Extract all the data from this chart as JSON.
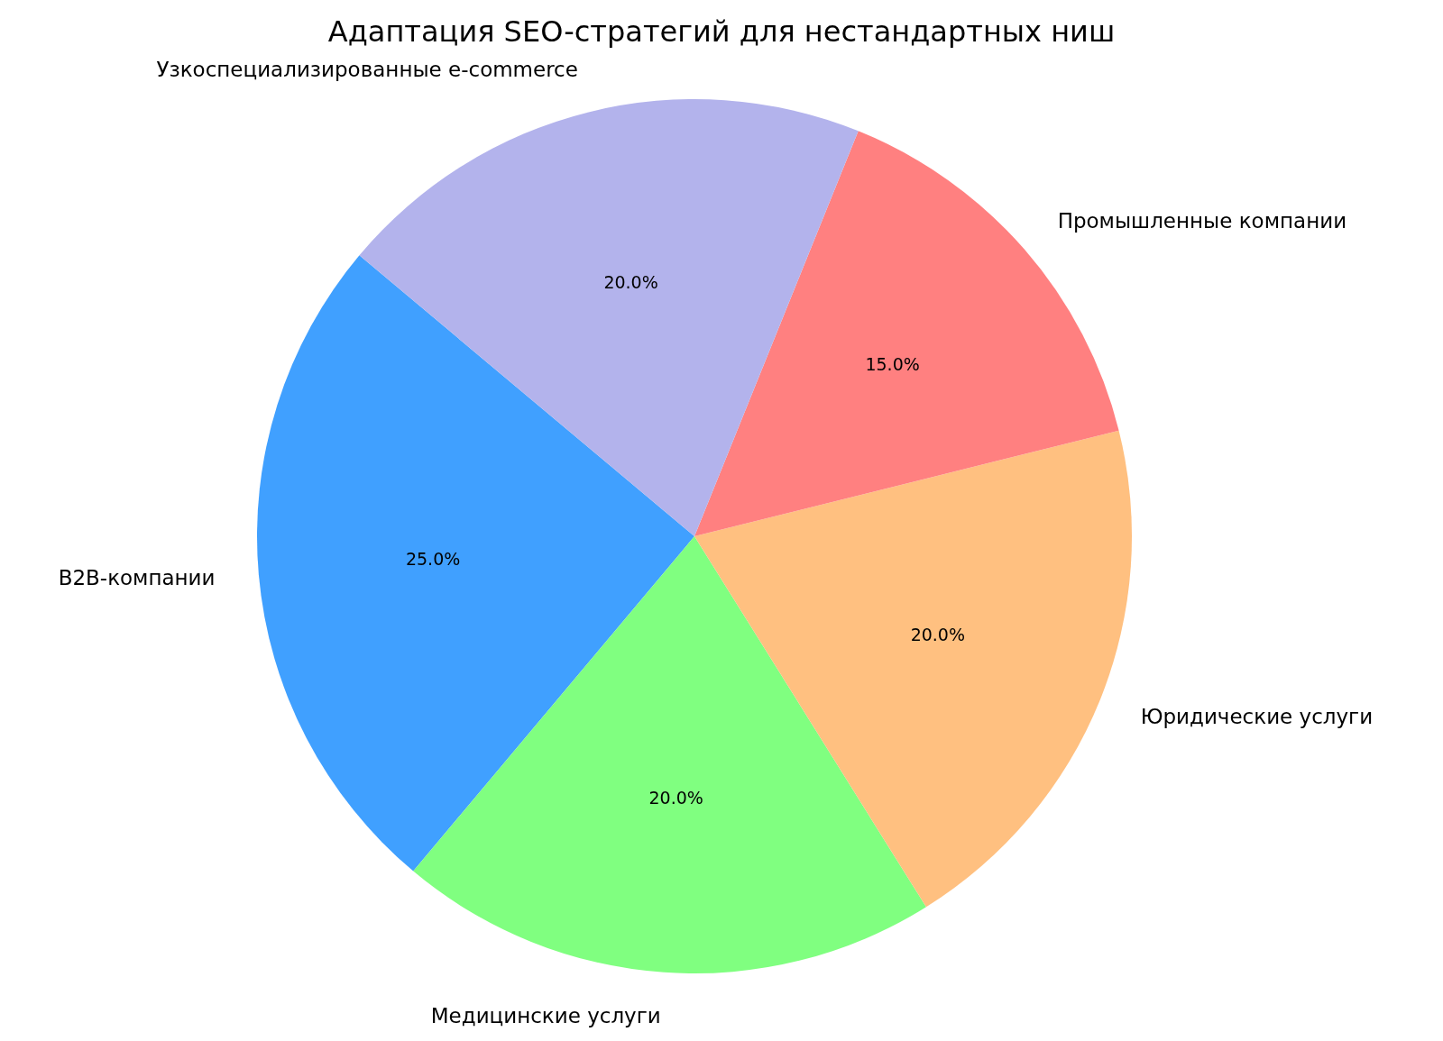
{
  "chart_data": {
    "type": "pie",
    "title": "Адаптация SEO-стратегий для нестандартных ниш",
    "categories": [
      "B2B-компании",
      "Медицинские услуги",
      "Юридические услуги",
      "Промышленные компании",
      "Узкоспециализированные e-commerce"
    ],
    "values": [
      25,
      20,
      20,
      15,
      20
    ],
    "value_labels": [
      "25.0%",
      "20.0%",
      "20.0%",
      "15.0%",
      "20.0%"
    ],
    "colors": [
      "#40a0ff",
      "#80ff80",
      "#ffc080",
      "#ff8080",
      "#b3b3ec"
    ],
    "legend": false
  }
}
